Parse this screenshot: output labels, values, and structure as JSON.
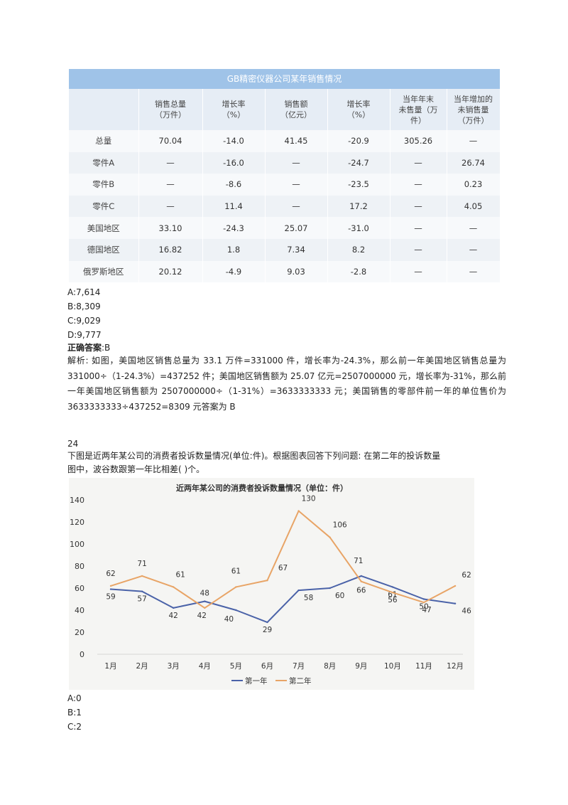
{
  "table": {
    "title": "GB精密仪器公司某年销售情况",
    "headers": [
      "",
      "销售总量\n（万件）",
      "增长率\n（%）",
      "销售额\n（亿元）",
      "增长率\n（%）",
      "当年年末\n未售量（万\n件）",
      "当年增加的\n未销售量\n（万件）"
    ],
    "rows": [
      [
        "总量",
        "70.04",
        "-14.0",
        "41.45",
        "-20.9",
        "305.26",
        "—"
      ],
      [
        "零件A",
        "—",
        "-16.0",
        "—",
        "-24.7",
        "—",
        "26.74"
      ],
      [
        "零件B",
        "—",
        "-8.6",
        "—",
        "-23.5",
        "—",
        "0.23"
      ],
      [
        "零件C",
        "—",
        "11.4",
        "—",
        "17.2",
        "—",
        "4.05"
      ],
      [
        "美国地区",
        "33.10",
        "-24.3",
        "25.07",
        "-31.0",
        "—",
        "—"
      ],
      [
        "德国地区",
        "16.82",
        "1.8",
        "7.34",
        "8.2",
        "—",
        "—"
      ],
      [
        "俄罗斯地区",
        "20.12",
        "-4.9",
        "9.03",
        "-2.8",
        "—",
        "—"
      ]
    ]
  },
  "q23": {
    "options": [
      "A:7,614",
      "B:8,309",
      "C:9,029",
      "D:9,777"
    ],
    "answer_label": "正确答案",
    "answer_value": ":B",
    "explanation": "解析: 如图，美国地区销售总量为 33.1 万件=331000 件，增长率为-24.3%，那么前一年美国地区销售总量为 331000÷（1-24.3%）=437252 件；美国地区销售额为 25.07 亿元=2507000000 元，增长率为-31%，那么前一年美国地区销售额为 2507000000÷（1-31%）=3633333333 元；美国销售的零部件前一年的单位售价为 3633333333÷437252=8309 元答案为 B"
  },
  "q24": {
    "number": "24",
    "question_line1": "下图是近两年某公司的消费者投诉数量情况(单位:件)。根据图表回答下列问题: 在第二年的投诉数量",
    "question_line2": "图中，波谷数跟第一年比相差(  )个。",
    "options": [
      "A:0",
      "B:1",
      "C:2"
    ]
  },
  "chart_data": {
    "type": "line",
    "title": "近两年某公司的消费者投诉数量情况（单位：件）",
    "categories": [
      "1月",
      "2月",
      "3月",
      "4月",
      "5月",
      "6月",
      "7月",
      "8月",
      "9月",
      "10月",
      "11月",
      "12月"
    ],
    "series": [
      {
        "name": "第一年",
        "color": "#4a62a8",
        "values": [
          59,
          57,
          42,
          48,
          40,
          29,
          58,
          60,
          71,
          61,
          50,
          46
        ]
      },
      {
        "name": "第二年",
        "color": "#e8a466",
        "values": [
          62,
          71,
          61,
          42,
          61,
          67,
          130,
          106,
          66,
          56,
          47,
          62
        ]
      }
    ],
    "ylim": [
      0,
      140
    ],
    "yticks": [
      0,
      20,
      40,
      60,
      80,
      100,
      120,
      140
    ],
    "grid": false,
    "legend": "bottom"
  }
}
